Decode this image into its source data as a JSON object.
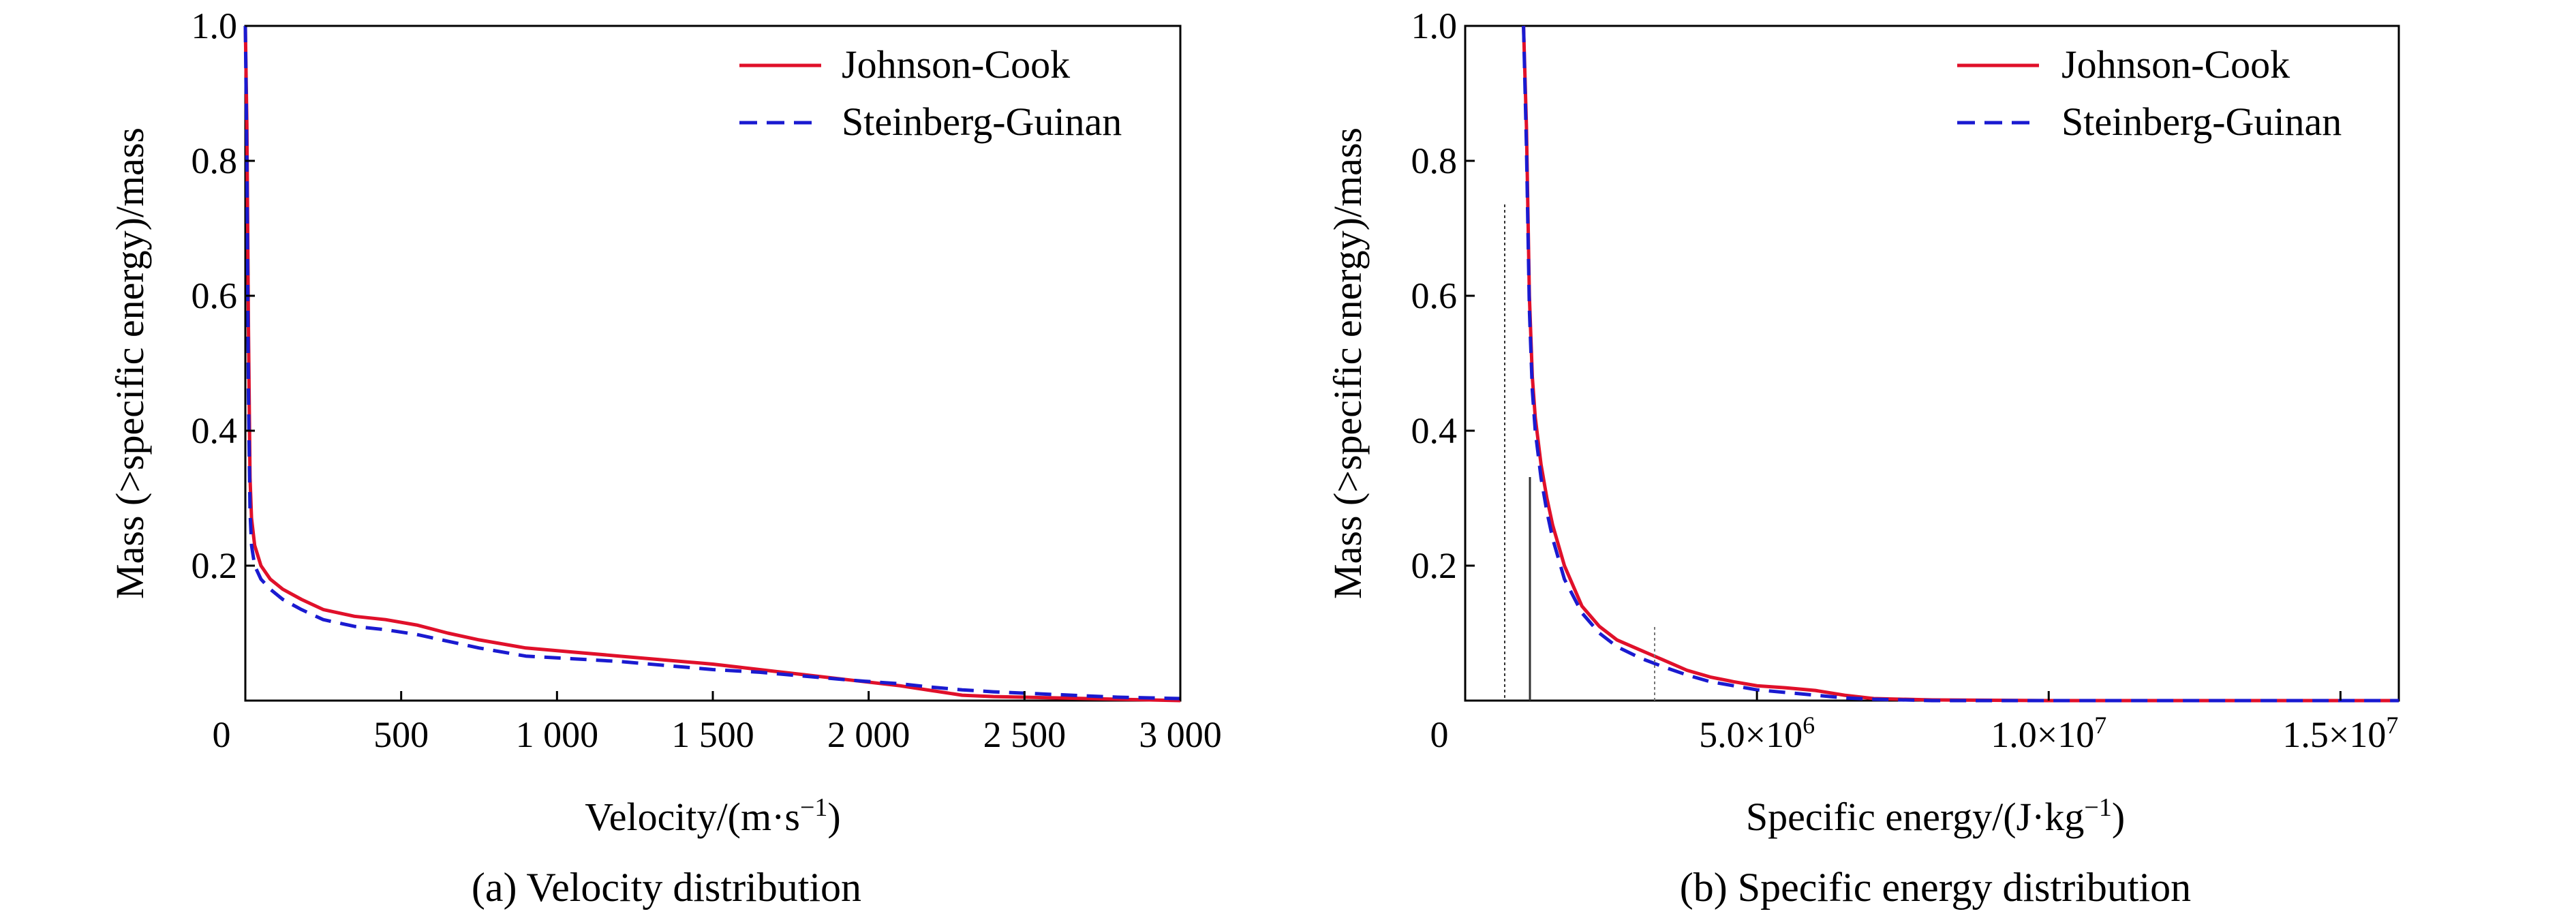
{
  "charts": [
    {
      "caption": "(a) Velocity distribution",
      "xlabel_main": "Velocity/(m·s",
      "xlabel_sup": "−1",
      "xlabel_tail": ")",
      "ylabel": "Mass (>specific energy)/mass",
      "zero_label": "0",
      "xticks": [
        {
          "value": 500,
          "label": "500"
        },
        {
          "value": 1000,
          "label": "1 000"
        },
        {
          "value": 1500,
          "label": "1 500"
        },
        {
          "value": 2000,
          "label": "2 000"
        },
        {
          "value": 2500,
          "label": "2 500"
        },
        {
          "value": 3000,
          "label": "3 000"
        }
      ],
      "yticks": [
        {
          "value": 0.2,
          "label": "0.2"
        },
        {
          "value": 0.4,
          "label": "0.4"
        },
        {
          "value": 0.6,
          "label": "0.6"
        },
        {
          "value": 0.8,
          "label": "0.8"
        },
        {
          "value": 1.0,
          "label": "1.0"
        }
      ],
      "legend": [
        "Johnson-Cook",
        "Steinberg-Guinan"
      ]
    },
    {
      "caption": "(b) Specific energy distribution",
      "xlabel_main": "Specific energy/(J·kg",
      "xlabel_sup": "−1",
      "xlabel_tail": ")",
      "ylabel": "Mass (>specific energy)/mass",
      "zero_label": "0",
      "xticks": [
        {
          "value": 5000000,
          "base": "5.0×10",
          "exp": "6"
        },
        {
          "value": 10000000,
          "base": "1.0×10",
          "exp": "7"
        },
        {
          "value": 15000000,
          "base": "1.5×10",
          "exp": "7"
        }
      ],
      "yticks": [
        {
          "value": 0.2,
          "label": "0.2"
        },
        {
          "value": 0.4,
          "label": "0.4"
        },
        {
          "value": 0.6,
          "label": "0.6"
        },
        {
          "value": 0.8,
          "label": "0.8"
        },
        {
          "value": 1.0,
          "label": "1.0"
        }
      ],
      "legend": [
        "Johnson-Cook",
        "Steinberg-Guinan"
      ]
    }
  ],
  "chart_data": [
    {
      "type": "line",
      "xlim": [
        0,
        3000
      ],
      "ylim": [
        0,
        1.0
      ],
      "grid": false,
      "legend_position": "top-right",
      "series": [
        {
          "name": "Johnson-Cook",
          "color": "#e0102a",
          "dash": "solid",
          "x": [
            0,
            5,
            10,
            15,
            20,
            30,
            50,
            80,
            120,
            180,
            250,
            350,
            450,
            550,
            650,
            750,
            900,
            1050,
            1200,
            1350,
            1500,
            1650,
            1800,
            1950,
            2100,
            2200,
            2300,
            2400,
            2500,
            2600,
            2700,
            2800,
            2900,
            3000
          ],
          "y": [
            1.0,
            0.85,
            0.55,
            0.33,
            0.27,
            0.23,
            0.2,
            0.18,
            0.165,
            0.15,
            0.135,
            0.125,
            0.12,
            0.112,
            0.1,
            0.09,
            0.078,
            0.072,
            0.066,
            0.06,
            0.054,
            0.046,
            0.038,
            0.03,
            0.022,
            0.015,
            0.008,
            0.006,
            0.005,
            0.004,
            0.003,
            0.002,
            0.001,
            0.0
          ]
        },
        {
          "name": "Steinberg-Guinan",
          "color": "#1a1ad0",
          "dash": "dashed",
          "x": [
            0,
            5,
            10,
            15,
            20,
            30,
            50,
            80,
            120,
            180,
            250,
            350,
            450,
            550,
            650,
            750,
            900,
            1050,
            1200,
            1350,
            1500,
            1650,
            1800,
            1950,
            2100,
            2200,
            2300,
            2400,
            2500,
            2600,
            2700,
            2800,
            2900,
            3000
          ],
          "y": [
            1.0,
            0.8,
            0.45,
            0.28,
            0.23,
            0.2,
            0.18,
            0.165,
            0.15,
            0.135,
            0.12,
            0.11,
            0.105,
            0.098,
            0.088,
            0.078,
            0.066,
            0.062,
            0.058,
            0.052,
            0.046,
            0.042,
            0.036,
            0.03,
            0.025,
            0.02,
            0.016,
            0.013,
            0.011,
            0.009,
            0.007,
            0.005,
            0.004,
            0.003
          ]
        }
      ]
    },
    {
      "type": "line",
      "xlim": [
        0,
        16000000
      ],
      "ylim": [
        0,
        1.0
      ],
      "grid": false,
      "legend_position": "top-right",
      "series": [
        {
          "name": "Johnson-Cook",
          "color": "#e0102a",
          "dash": "solid",
          "x": [
            1000000,
            1050000,
            1100000,
            1150000,
            1200000,
            1300000,
            1400000,
            1500000,
            1700000,
            2000000,
            2300000,
            2600000,
            3000000,
            3400000,
            3800000,
            4200000,
            4600000,
            5000000,
            5500000,
            6000000,
            6500000,
            7000000,
            8000000,
            10000000,
            12000000,
            14000000,
            16000000
          ],
          "y": [
            1.0,
            0.85,
            0.6,
            0.48,
            0.42,
            0.35,
            0.3,
            0.26,
            0.2,
            0.14,
            0.11,
            0.09,
            0.075,
            0.06,
            0.045,
            0.035,
            0.028,
            0.022,
            0.019,
            0.015,
            0.008,
            0.003,
            0.001,
            0.0,
            0.0,
            0.0,
            0.0
          ]
        },
        {
          "name": "Steinberg-Guinan",
          "color": "#1a1ad0",
          "dash": "dashed",
          "x": [
            1000000,
            1050000,
            1100000,
            1150000,
            1200000,
            1300000,
            1400000,
            1500000,
            1700000,
            2000000,
            2300000,
            2600000,
            3000000,
            3400000,
            3800000,
            4200000,
            4600000,
            5000000,
            5500000,
            6000000,
            6500000,
            7000000,
            8000000,
            10000000,
            12000000,
            14000000,
            16000000
          ],
          "y": [
            1.0,
            0.82,
            0.58,
            0.46,
            0.4,
            0.33,
            0.28,
            0.24,
            0.18,
            0.13,
            0.1,
            0.08,
            0.063,
            0.05,
            0.038,
            0.028,
            0.022,
            0.016,
            0.012,
            0.008,
            0.004,
            0.002,
            0.0,
            0.0,
            0.0,
            0.0,
            0.0
          ]
        }
      ]
    }
  ]
}
